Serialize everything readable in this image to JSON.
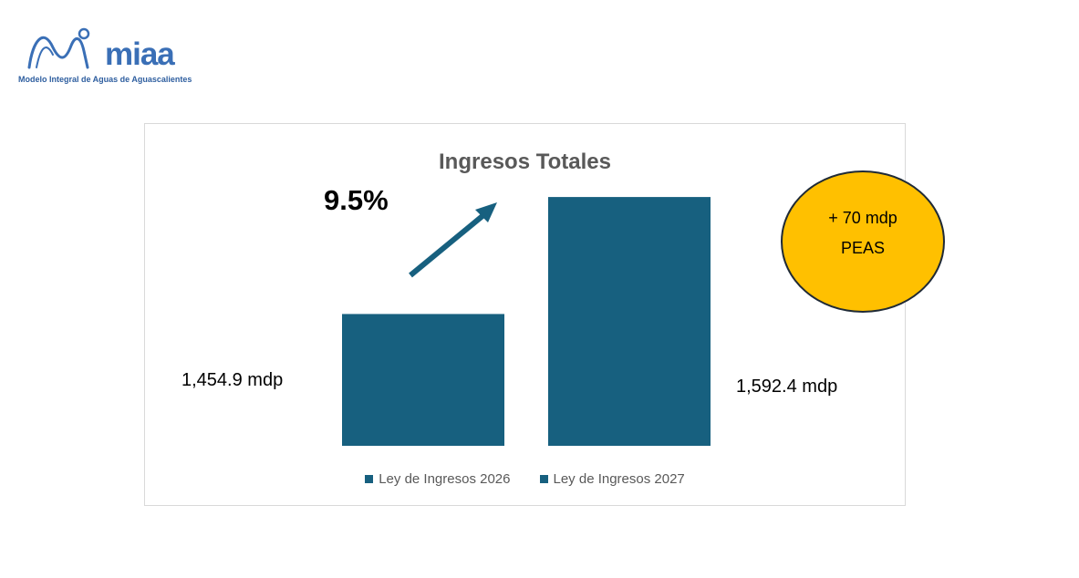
{
  "logo": {
    "wordmark": "miaa",
    "tagline": "Modelo Integral de Aguas de Aguascalientes",
    "color": "#3a6fb6"
  },
  "chart_data": {
    "type": "bar",
    "title": "Ingresos Totales",
    "categories": [
      "Ley de Ingresos 2026",
      "Ley de Ingresos 2027"
    ],
    "values": [
      1454.9,
      1592.4
    ],
    "value_labels": [
      "1,454.9 mdp",
      "1,592.4 mdp"
    ],
    "unit": "mdp",
    "ylim": [
      1300,
      1600
    ],
    "grid": false,
    "legend": {
      "position": "bottom",
      "entries": [
        "Ley de Ingresos 2026",
        "Ley de Ingresos 2027"
      ]
    },
    "annotation": "9.5%",
    "bar_color": "#17607f"
  },
  "badge": {
    "line1": "+ 70 mdp",
    "line2": "PEAS",
    "fill": "#ffc000"
  }
}
